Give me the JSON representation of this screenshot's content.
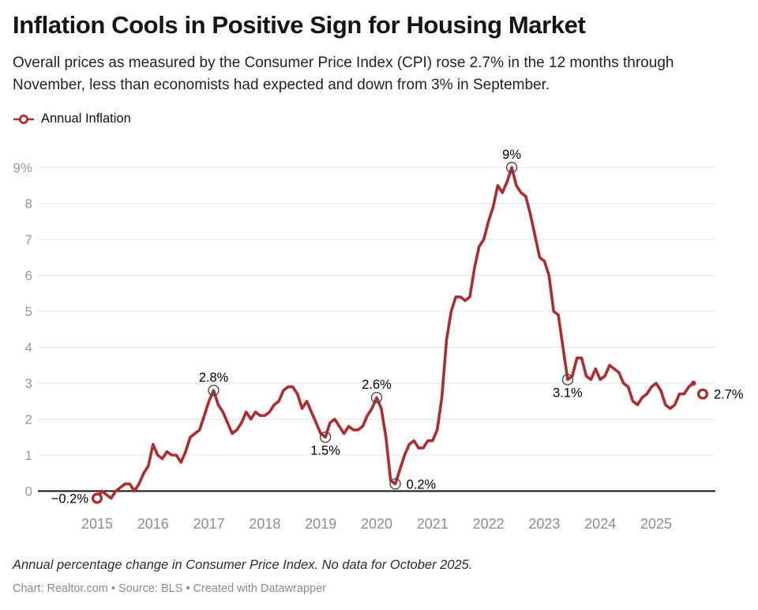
{
  "header": {
    "title": "Inflation Cools in Positive Sign for Housing Market",
    "subtitle": "Overall prices as measured by the Consumer Price Index (CPI) rose 2.7% in the 12 months through November, less than economists had expected and down from 3% in September."
  },
  "legend": {
    "label": "Annual Inflation"
  },
  "footer": {
    "note": "Annual percentage change in Consumer Price Index. No data for October 2025.",
    "credit": "Chart: Realtor.com • Source: BLS • Created with Datawrapper"
  },
  "colors": {
    "line": "#b02b2e",
    "grid": "#e3e3e3",
    "zero_line": "#111111",
    "y_axis_text": "#979797",
    "x_axis_text": "#8d8d8d",
    "annotation_text": "#000000",
    "annotation_ring": "#4a4a4a"
  },
  "chart_data": {
    "type": "line",
    "series_name": "Annual Inflation",
    "unit": "%",
    "x_start": "2015-01",
    "x_end": "2025-11",
    "grid": "horizontal",
    "x_axis": {
      "tick_years": [
        2015,
        2016,
        2017,
        2018,
        2019,
        2020,
        2021,
        2022,
        2023,
        2024,
        2025
      ]
    },
    "y_axis": {
      "range": [
        -0.5,
        9.5
      ],
      "ticks": [
        {
          "value": 9,
          "label": "9%"
        },
        {
          "value": 8,
          "label": "8"
        },
        {
          "value": 7,
          "label": "7"
        },
        {
          "value": 6,
          "label": "6"
        },
        {
          "value": 5,
          "label": "5"
        },
        {
          "value": 4,
          "label": "4"
        },
        {
          "value": 3,
          "label": "3"
        },
        {
          "value": 2,
          "label": "2"
        },
        {
          "value": 1,
          "label": "1"
        },
        {
          "value": 0,
          "label": "0"
        }
      ]
    },
    "monthly_values": {
      "2015": [
        -0.2,
        0.0,
        -0.1,
        -0.2,
        0.0,
        0.1,
        0.2,
        0.2,
        0.0,
        0.2,
        0.5,
        0.7
      ],
      "2016": [
        1.3,
        1.0,
        0.9,
        1.1,
        1.0,
        1.0,
        0.8,
        1.1,
        1.5,
        1.6,
        1.7,
        2.1
      ],
      "2017": [
        2.5,
        2.8,
        2.4,
        2.2,
        1.9,
        1.6,
        1.7,
        1.9,
        2.2,
        2.0,
        2.2,
        2.1
      ],
      "2018": [
        2.1,
        2.2,
        2.4,
        2.5,
        2.8,
        2.9,
        2.9,
        2.7,
        2.3,
        2.5,
        2.2,
        1.9
      ],
      "2019": [
        1.6,
        1.5,
        1.9,
        2.0,
        1.8,
        1.6,
        1.8,
        1.7,
        1.7,
        1.8,
        2.1,
        2.3
      ],
      "2020": [
        2.6,
        2.3,
        1.5,
        0.3,
        0.2,
        0.6,
        1.0,
        1.3,
        1.4,
        1.2,
        1.2,
        1.4
      ],
      "2021": [
        1.4,
        1.7,
        2.6,
        4.2,
        5.0,
        5.4,
        5.4,
        5.3,
        5.4,
        6.2,
        6.8,
        7.0
      ],
      "2022": [
        7.5,
        7.9,
        8.5,
        8.3,
        8.6,
        9.0,
        8.5,
        8.3,
        8.2,
        7.7,
        7.1,
        6.5
      ],
      "2023": [
        6.4,
        6.0,
        5.0,
        4.9,
        4.0,
        3.1,
        3.2,
        3.7,
        3.7,
        3.2,
        3.1,
        3.4
      ],
      "2024": [
        3.1,
        3.2,
        3.5,
        3.4,
        3.3,
        3.0,
        2.9,
        2.5,
        2.4,
        2.6,
        2.7,
        2.9
      ],
      "2025": [
        3.0,
        2.8,
        2.4,
        2.3,
        2.4,
        2.7,
        2.7,
        2.9,
        3.0,
        null,
        2.7
      ]
    },
    "no_data": [
      "2025-10"
    ],
    "line_end_dot": "2025-09",
    "annotations": [
      {
        "date": "2015-01",
        "value": -0.2,
        "label": "−0.2%",
        "position": "left",
        "marker": "red-ring"
      },
      {
        "date": "2017-02",
        "value": 2.8,
        "label": "2.8%",
        "position": "above",
        "marker": "gray-ring"
      },
      {
        "date": "2019-02",
        "value": 1.5,
        "label": "1.5%",
        "position": "below",
        "marker": "gray-ring"
      },
      {
        "date": "2020-01",
        "value": 2.6,
        "label": "2.6%",
        "position": "above",
        "marker": "gray-ring"
      },
      {
        "date": "2020-05",
        "value": 0.2,
        "label": "0.2%",
        "position": "right",
        "marker": "gray-ring"
      },
      {
        "date": "2022-06",
        "value": 9.0,
        "label": "9%",
        "position": "above",
        "marker": "gray-ring"
      },
      {
        "date": "2023-06",
        "value": 3.1,
        "label": "3.1%",
        "position": "below",
        "marker": "gray-ring"
      },
      {
        "date": "2025-11",
        "value": 2.7,
        "label": "2.7%",
        "position": "right",
        "marker": "red-ring"
      }
    ]
  }
}
